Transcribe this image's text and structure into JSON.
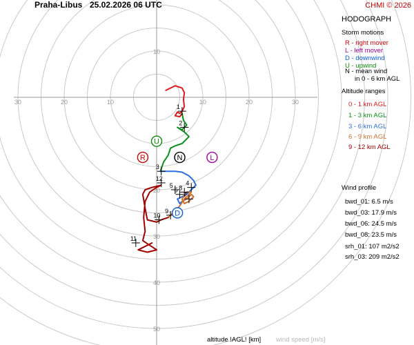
{
  "header": {
    "station": "Praha-Libus",
    "datetime": "25.02.2026 06 UTC",
    "copyright": "CHMI © 2026"
  },
  "panel": {
    "title": "HODOGRAPH",
    "storm_motions_title": "Storm motions",
    "storm_motions": [
      {
        "text": "R - right mover",
        "color": "#d40000"
      },
      {
        "text": "L - left mover",
        "color": "#a000a0"
      },
      {
        "text": "D - downwind",
        "color": "#0a5ad8"
      },
      {
        "text": "U - upwind",
        "color": "#0a8a0a"
      },
      {
        "text": "N - mean wind",
        "color": "#000000"
      },
      {
        "text": "in 0 - 6 km AGL",
        "color": "#000000"
      }
    ],
    "altitude_title": "Altitude ranges",
    "altitude_ranges": [
      {
        "text": "0 - 1 km AGL",
        "color": "#e01818"
      },
      {
        "text": "1 - 3 km AGL",
        "color": "#089018"
      },
      {
        "text": "3 - 6 km AGL",
        "color": "#2a6ee0"
      },
      {
        "text": "6 - 9 km AGL",
        "color": "#d07030"
      },
      {
        "text": "9 - 12 km AGL",
        "color": "#a00000"
      }
    ],
    "wind_profile_title": "Wind profile",
    "wind_profile": [
      "bwd_01: 6.5 m/s",
      "bwd_03: 17.9 m/s",
      "bwd_06: 24.5 m/s",
      "bwd_08: 23.5 m/s"
    ],
    "helicity": [
      "srh_01: 107 m2/s2",
      "srh_03: 209 m2/s2"
    ]
  },
  "footer": {
    "altitude_label": "altitude !AGL! [km]",
    "speed_label": "wind speed [m/s]"
  },
  "chart_data": {
    "type": "hodograph",
    "units": "m/s",
    "ring_step": 5,
    "ring_count": 11,
    "axis_labels": [
      "30",
      "20",
      "10",
      "10",
      "20",
      "30",
      "10",
      "20",
      "30",
      "40",
      "50"
    ],
    "storm_markers": [
      {
        "label": "R",
        "u": -3.0,
        "v": -13.0,
        "color": "#d40000"
      },
      {
        "label": "L",
        "u": 12.0,
        "v": -13.0,
        "color": "#a000a0"
      },
      {
        "label": "U",
        "u": 0.0,
        "v": -9.5,
        "color": "#0a8a0a"
      },
      {
        "label": "N",
        "u": 5.0,
        "v": -13.0,
        "color": "#000000"
      },
      {
        "label": "D",
        "u": 4.5,
        "v": -25.0,
        "color": "#0a5ad8"
      }
    ],
    "height_labels": [
      {
        "text": "1",
        "u": 5.5,
        "v": -3.0
      },
      {
        "text": "2",
        "u": 6.0,
        "v": -6.5
      },
      {
        "text": "3",
        "u": 1.0,
        "v": -16.0
      },
      {
        "text": "4",
        "u": 7.5,
        "v": -19.5
      },
      {
        "text": "5",
        "u": 4.0,
        "v": -20.0
      },
      {
        "text": "6",
        "u": 5.0,
        "v": -21.0
      },
      {
        "text": "7",
        "u": 7.0,
        "v": -22.0
      },
      {
        "text": "8",
        "u": 6.0,
        "v": -20.5
      },
      {
        "text": "9",
        "u": 3.0,
        "v": -25.5
      },
      {
        "text": "10",
        "u": 0.5,
        "v": -26.5
      },
      {
        "text": "11",
        "u": -4.5,
        "v": -31.5
      },
      {
        "text": "12",
        "u": 1.0,
        "v": -18.5
      }
    ],
    "layers": [
      {
        "name": "0 - 1 km AGL",
        "color": "#e01818",
        "points": [
          [
            2,
            1.5
          ],
          [
            4,
            2.5
          ],
          [
            5.5,
            2
          ],
          [
            6,
            1
          ],
          [
            5.8,
            -0.5
          ],
          [
            6,
            -2
          ],
          [
            5.5,
            -3
          ],
          [
            5,
            -3.5
          ],
          [
            4.5,
            -3.2
          ],
          [
            4,
            -4
          ],
          [
            5,
            -4.2
          ],
          [
            5.5,
            -3.5
          ]
        ]
      },
      {
        "name": "1 - 3 km AGL",
        "color": "#089018",
        "points": [
          [
            5.5,
            -3.5
          ],
          [
            5.8,
            -5
          ],
          [
            6.5,
            -6
          ],
          [
            5.5,
            -7
          ],
          [
            4.5,
            -6.5
          ],
          [
            6,
            -7.5
          ],
          [
            7,
            -8.5
          ],
          [
            6,
            -9.5
          ],
          [
            5.5,
            -10
          ],
          [
            4,
            -10.5
          ],
          [
            3,
            -11
          ],
          [
            2.5,
            -12.5
          ],
          [
            1.5,
            -14
          ],
          [
            0.8,
            -16
          ]
        ]
      },
      {
        "name": "3 - 6 km AGL",
        "color": "#2a6ee0",
        "points": [
          [
            0.8,
            -16
          ],
          [
            2,
            -16
          ],
          [
            4,
            -16
          ],
          [
            5.5,
            -16.2
          ],
          [
            7,
            -17
          ],
          [
            8,
            -18
          ],
          [
            8.5,
            -19
          ],
          [
            7.5,
            -20
          ],
          [
            6.5,
            -21
          ],
          [
            5.5,
            -21.5
          ],
          [
            4.5,
            -22
          ],
          [
            5,
            -23
          ],
          [
            5.5,
            -22.5
          ]
        ]
      },
      {
        "name": "6 - 9 km AGL",
        "color": "#d07030",
        "points": [
          [
            5.5,
            -22.5
          ],
          [
            6.5,
            -22
          ],
          [
            7.5,
            -21
          ],
          [
            8,
            -21.5
          ],
          [
            7,
            -22.5
          ],
          [
            6,
            -23
          ],
          [
            5.5,
            -22
          ],
          [
            6.5,
            -20.5
          ],
          [
            7.5,
            -20.5
          ],
          [
            6,
            -22
          ],
          [
            5,
            -23.5
          ],
          [
            4.5,
            -24
          ],
          [
            3.5,
            -25
          ],
          [
            2.5,
            -26
          ]
        ]
      },
      {
        "name": "9 - 12 km AGL",
        "color": "#a00000",
        "points": [
          [
            2.5,
            -26
          ],
          [
            1,
            -26.5
          ],
          [
            0,
            -27
          ],
          [
            -2,
            -26.5
          ],
          [
            -2.5,
            -24
          ],
          [
            -3,
            -21
          ],
          [
            -2.5,
            -20
          ],
          [
            -1,
            -19.5
          ],
          [
            1,
            -19
          ],
          [
            0,
            -19.5
          ],
          [
            -1.5,
            -20.5
          ],
          [
            -2.5,
            -22.5
          ],
          [
            -2.8,
            -26
          ],
          [
            -2.5,
            -29
          ],
          [
            -3,
            -31
          ],
          [
            -1.5,
            -32
          ],
          [
            0,
            -33
          ],
          [
            -2,
            -33.5
          ],
          [
            -4,
            -33
          ],
          [
            -3,
            -32.5
          ],
          [
            -1,
            -31.5
          ]
        ]
      }
    ]
  }
}
